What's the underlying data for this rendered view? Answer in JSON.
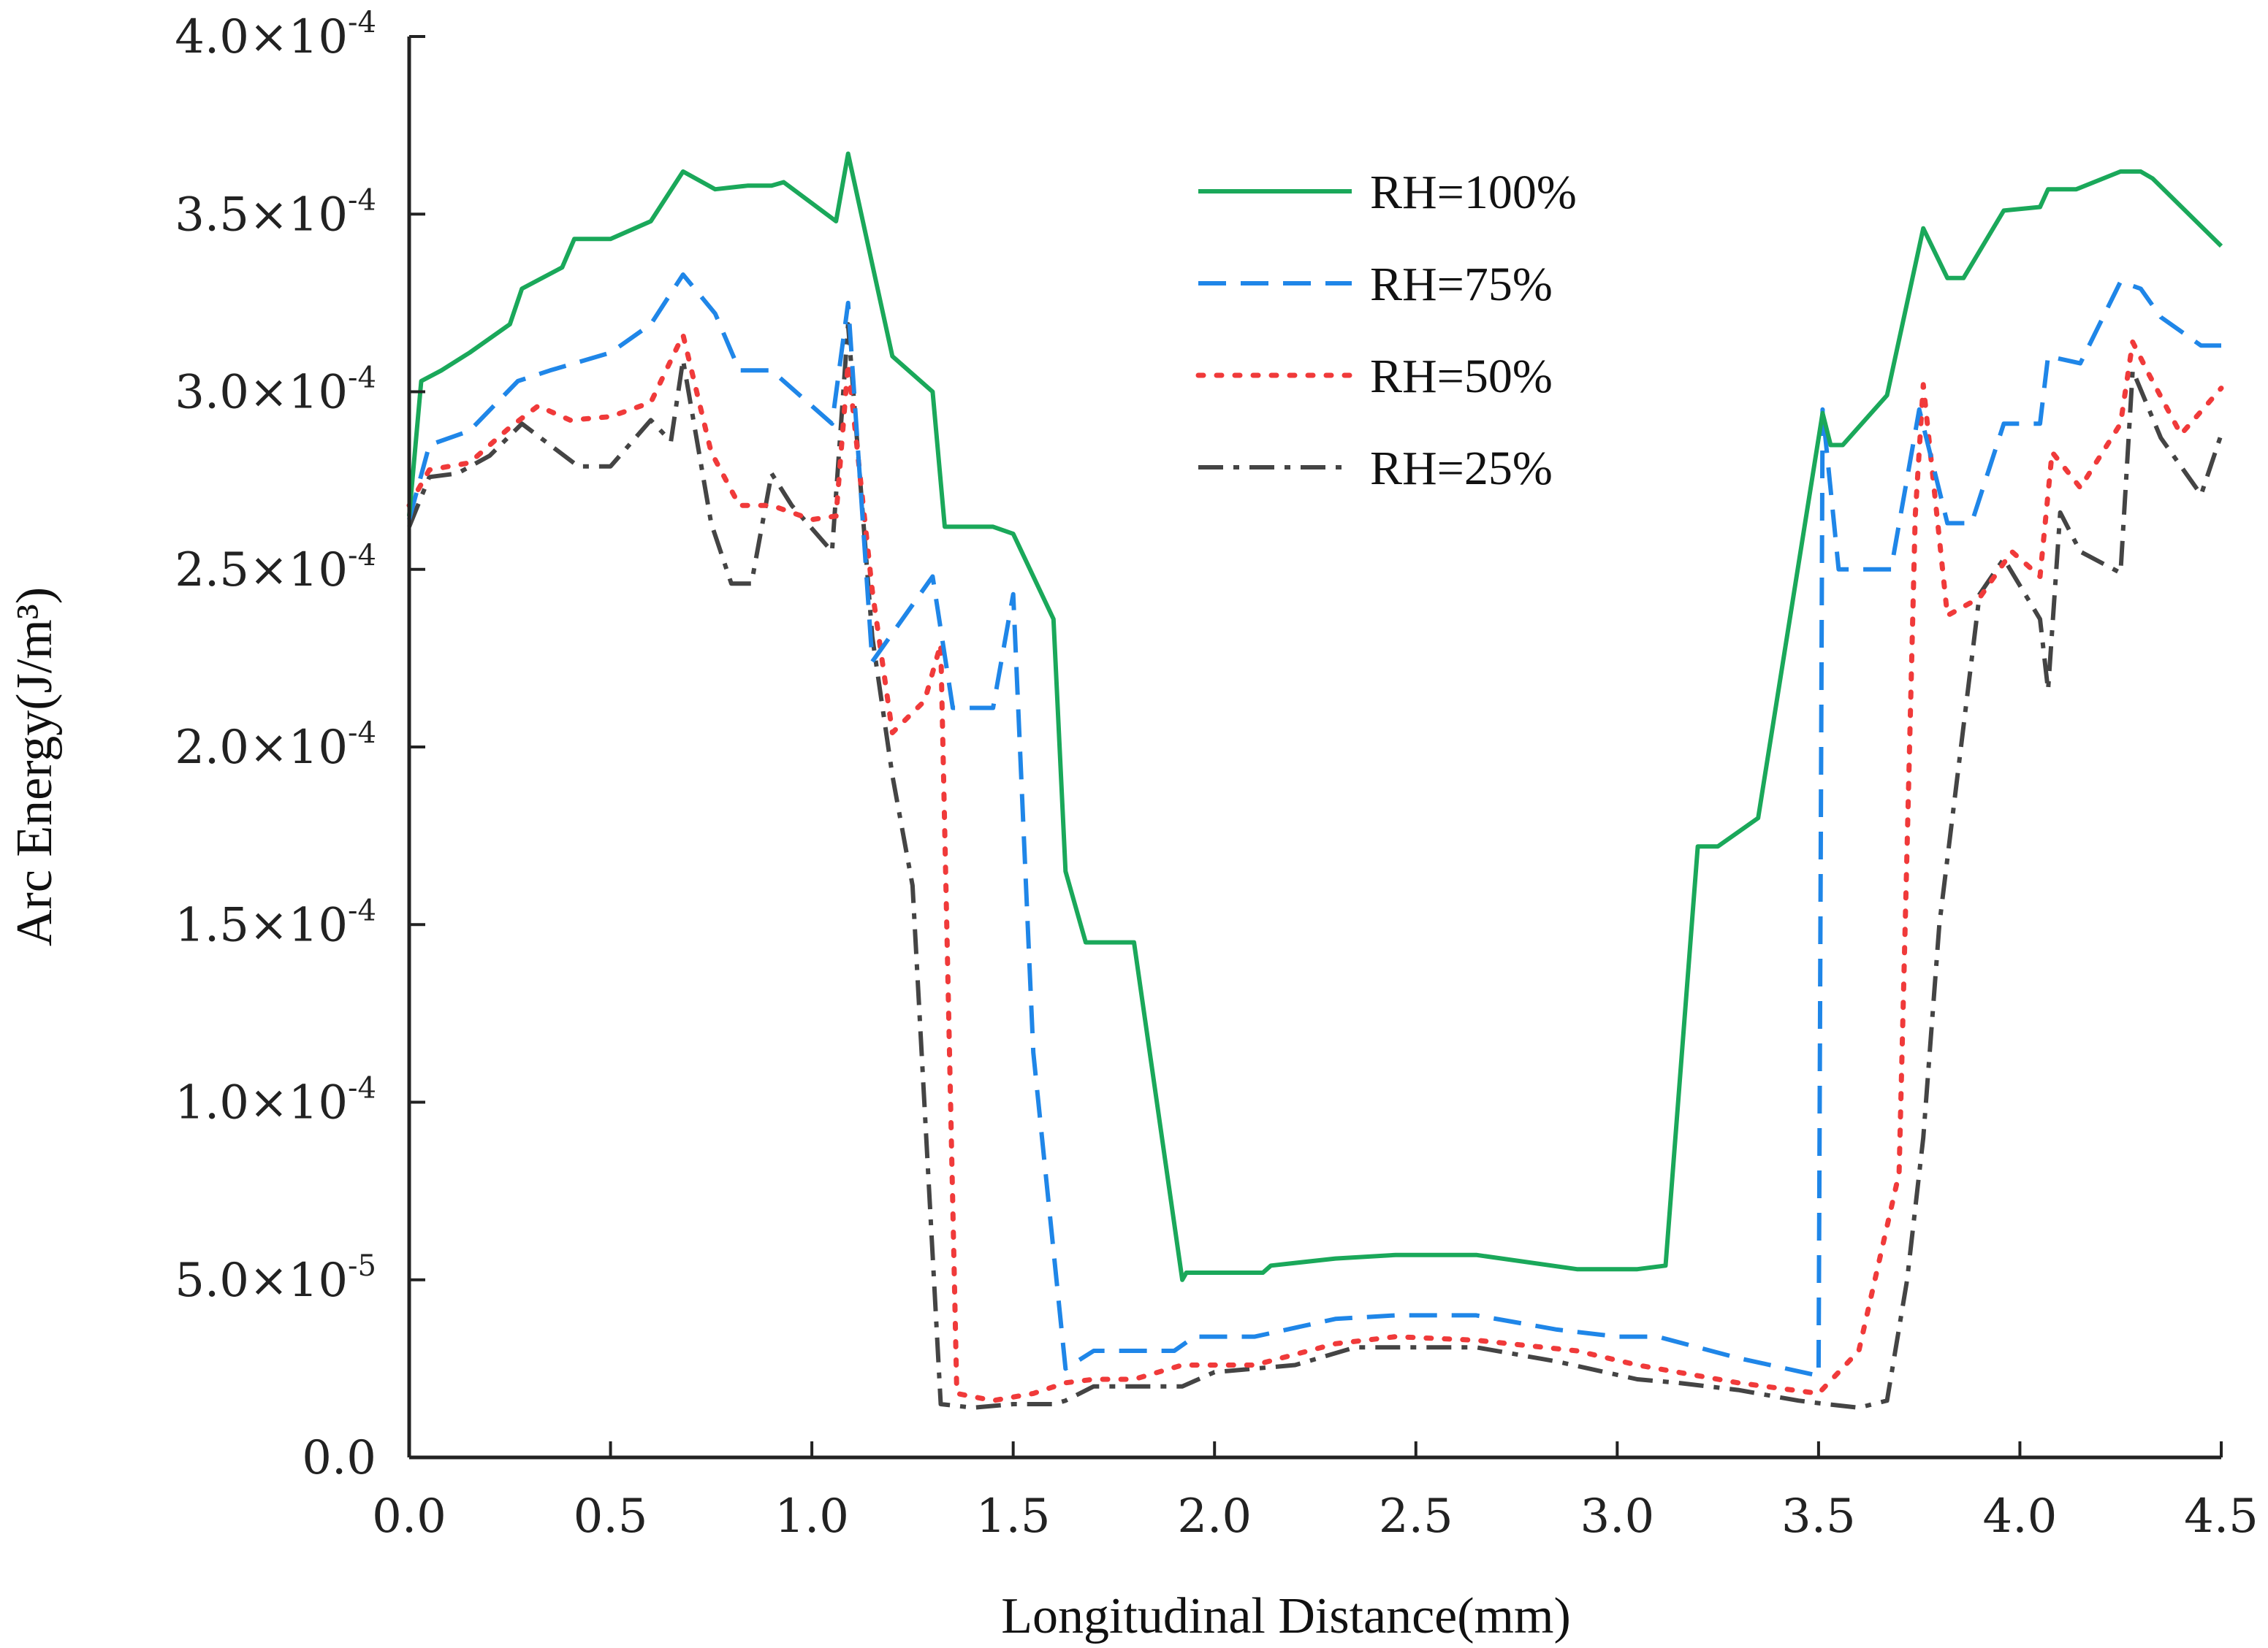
{
  "chart_data": {
    "type": "line",
    "title": "",
    "xlabel": "Longitudinal Distance(mm)",
    "ylabel": "Arc Energy(J/m³)",
    "xlim": [
      0,
      4.5
    ],
    "ylim": [
      0,
      0.0004
    ],
    "x_ticks": [
      0,
      0.5,
      1.0,
      1.5,
      2.0,
      2.5,
      3.0,
      3.5,
      4.0,
      4.5
    ],
    "x_tick_labels": [
      "0.0",
      "0.5",
      "1.0",
      "1.5",
      "2.0",
      "2.5",
      "3.0",
      "3.5",
      "4.0",
      "4.5"
    ],
    "y_ticks": [
      0,
      5e-05,
      0.0001,
      0.00015,
      0.0002,
      0.00025,
      0.0003,
      0.00035,
      0.0004
    ],
    "y_tick_labels": [
      {
        "mantissa": "0.0",
        "exponent": ""
      },
      {
        "mantissa": "5.0×10",
        "exponent": "-5"
      },
      {
        "mantissa": "1.0×10",
        "exponent": "-4"
      },
      {
        "mantissa": "1.5×10",
        "exponent": "-4"
      },
      {
        "mantissa": "2.0×10",
        "exponent": "-4"
      },
      {
        "mantissa": "2.5×10",
        "exponent": "-4"
      },
      {
        "mantissa": "3.0×10",
        "exponent": "-4"
      },
      {
        "mantissa": "3.5×10",
        "exponent": "-4"
      },
      {
        "mantissa": "4.0×10",
        "exponent": "-4"
      }
    ],
    "legend_position": "top-right",
    "series": [
      {
        "name": "RH=100%",
        "color": "#1aa85a",
        "dash": "solid",
        "x": [
          0,
          0.03,
          0.08,
          0.15,
          0.25,
          0.28,
          0.38,
          0.41,
          0.5,
          0.6,
          0.68,
          0.76,
          0.84,
          0.9,
          0.93,
          1.06,
          1.09,
          1.2,
          1.3,
          1.33,
          1.45,
          1.5,
          1.6,
          1.63,
          1.68,
          1.7,
          1.8,
          1.92,
          1.93,
          2.12,
          2.14,
          2.3,
          2.45,
          2.65,
          2.9,
          3.05,
          3.12,
          3.2,
          3.25,
          3.35,
          3.51,
          3.53,
          3.56,
          3.67,
          3.76,
          3.82,
          3.86,
          3.96,
          4.05,
          4.07,
          4.14,
          4.25,
          4.3,
          4.33,
          4.5
        ],
        "y": [
          0.000265,
          0.000303,
          0.000306,
          0.000311,
          0.000319,
          0.000329,
          0.000335,
          0.000343,
          0.000343,
          0.000348,
          0.000362,
          0.000357,
          0.000358,
          0.000358,
          0.000359,
          0.000348,
          0.000367,
          0.00031,
          0.0003,
          0.000262,
          0.000262,
          0.00026,
          0.000236,
          0.000165,
          0.000145,
          0.000145,
          0.000145,
          5e-05,
          5.2e-05,
          5.2e-05,
          5.4e-05,
          5.6e-05,
          5.7e-05,
          5.7e-05,
          5.3e-05,
          5.3e-05,
          5.4e-05,
          0.000172,
          0.000172,
          0.00018,
          0.000294,
          0.000285,
          0.000285,
          0.000299,
          0.000346,
          0.000332,
          0.000332,
          0.000351,
          0.000352,
          0.000357,
          0.000357,
          0.000362,
          0.000362,
          0.00036,
          0.000341
        ]
      },
      {
        "name": "RH=75%",
        "color": "#1f86e8",
        "dash": "dashed",
        "x": [
          0,
          0.05,
          0.15,
          0.27,
          0.35,
          0.5,
          0.6,
          0.68,
          0.76,
          0.82,
          0.9,
          1.05,
          1.09,
          1.15,
          1.3,
          1.35,
          1.45,
          1.5,
          1.55,
          1.63,
          1.7,
          1.8,
          1.9,
          1.95,
          2.1,
          2.3,
          2.45,
          2.65,
          2.85,
          3.0,
          3.1,
          3.3,
          3.5,
          3.51,
          3.55,
          3.68,
          3.75,
          3.82,
          3.88,
          3.96,
          4.05,
          4.07,
          4.15,
          4.25,
          4.3,
          4.35,
          4.45,
          4.5
        ],
        "y": [
          0.000264,
          0.000285,
          0.000289,
          0.000303,
          0.000306,
          0.000311,
          0.000319,
          0.000333,
          0.000322,
          0.000306,
          0.000306,
          0.000291,
          0.000325,
          0.000224,
          0.000248,
          0.000211,
          0.000211,
          0.000243,
          0.000114,
          2.5e-05,
          3e-05,
          3e-05,
          3e-05,
          3.4e-05,
          3.4e-05,
          3.9e-05,
          4e-05,
          4e-05,
          3.6e-05,
          3.4e-05,
          3.4e-05,
          2.8e-05,
          2.3e-05,
          0.000295,
          0.00025,
          0.00025,
          0.000295,
          0.000263,
          0.000263,
          0.000291,
          0.000291,
          0.00031,
          0.000308,
          0.000331,
          0.000329,
          0.000321,
          0.000313,
          0.000313
        ]
      },
      {
        "name": "RH=50%",
        "color": "#f03a3a",
        "dash": "dotted",
        "x": [
          0,
          0.05,
          0.15,
          0.25,
          0.32,
          0.4,
          0.5,
          0.6,
          0.68,
          0.75,
          0.82,
          0.9,
          1.0,
          1.06,
          1.09,
          1.15,
          1.2,
          1.28,
          1.32,
          1.36,
          1.45,
          1.55,
          1.63,
          1.7,
          1.8,
          1.92,
          2.1,
          2.3,
          2.45,
          2.65,
          2.9,
          3.05,
          3.15,
          3.3,
          3.5,
          3.6,
          3.7,
          3.74,
          3.76,
          3.82,
          3.9,
          3.98,
          4.05,
          4.08,
          4.15,
          4.25,
          4.28,
          4.32,
          4.4,
          4.5
        ],
        "y": [
          0.000268,
          0.000278,
          0.00028,
          0.00029,
          0.000296,
          0.000292,
          0.000293,
          0.000297,
          0.000316,
          0.000283,
          0.000268,
          0.000268,
          0.000264,
          0.000265,
          0.000308,
          0.000244,
          0.000204,
          0.000213,
          0.000229,
          1.8e-05,
          1.6e-05,
          1.8e-05,
          2.1e-05,
          2.2e-05,
          2.2e-05,
          2.6e-05,
          2.6e-05,
          3.2e-05,
          3.4e-05,
          3.3e-05,
          3e-05,
          2.6e-05,
          2.4e-05,
          2.1e-05,
          1.8e-05,
          3e-05,
          8e-05,
          0.000265,
          0.000302,
          0.000237,
          0.000242,
          0.000255,
          0.000248,
          0.000283,
          0.000273,
          0.000291,
          0.000314,
          0.000305,
          0.000288,
          0.000301
        ]
      },
      {
        "name": "RH=25%",
        "color": "#444444",
        "dash": "dashdot",
        "x": [
          0,
          0.05,
          0.12,
          0.2,
          0.28,
          0.35,
          0.42,
          0.5,
          0.6,
          0.65,
          0.68,
          0.75,
          0.8,
          0.85,
          0.9,
          0.95,
          1.05,
          1.09,
          1.15,
          1.2,
          1.25,
          1.32,
          1.4,
          1.5,
          1.6,
          1.63,
          1.7,
          1.82,
          1.92,
          2.0,
          2.2,
          2.35,
          2.5,
          2.65,
          2.85,
          3.05,
          3.15,
          3.3,
          3.45,
          3.52,
          3.6,
          3.67,
          3.72,
          3.76,
          3.8,
          3.9,
          3.96,
          4.05,
          4.07,
          4.1,
          4.15,
          4.25,
          4.28,
          4.35,
          4.45,
          4.5
        ],
        "y": [
          0.000262,
          0.000276,
          0.000277,
          0.000282,
          0.000291,
          0.000285,
          0.000279,
          0.000279,
          0.000292,
          0.000286,
          0.000309,
          0.000263,
          0.000246,
          0.000246,
          0.000277,
          0.000268,
          0.000255,
          0.000319,
          0.000231,
          0.000192,
          0.000161,
          1.5e-05,
          1.4e-05,
          1.5e-05,
          1.5e-05,
          1.6e-05,
          2e-05,
          2e-05,
          2e-05,
          2.4e-05,
          2.6e-05,
          3.1e-05,
          3.1e-05,
          3.1e-05,
          2.7e-05,
          2.2e-05,
          2.1e-05,
          1.9e-05,
          1.6e-05,
          1.5e-05,
          1.4e-05,
          1.6e-05,
          5e-05,
          9e-05,
          0.00015,
          0.000243,
          0.000253,
          0.000236,
          0.000216,
          0.000266,
          0.000255,
          0.000249,
          0.000306,
          0.000287,
          0.000271,
          0.000288
        ]
      }
    ]
  }
}
